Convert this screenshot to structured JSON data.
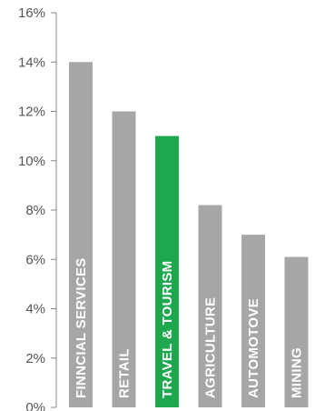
{
  "chart_data": {
    "type": "bar",
    "orientation": "vertical",
    "title": "",
    "xlabel": "",
    "ylabel": "",
    "categories": [
      "FINNCIAL SERVICES",
      "RETAIL",
      "TRAVEL & TOURISM",
      "AGRICULTURE",
      "AUTOMOTOVE",
      "MINING"
    ],
    "values": [
      14,
      12,
      11,
      8.2,
      7,
      6.1
    ],
    "ylim": [
      0,
      16
    ],
    "y_ticks": [
      0,
      2,
      4,
      6,
      8,
      10,
      12,
      14,
      16
    ],
    "y_tick_labels": [
      "0%",
      "2%",
      "4%",
      "6%",
      "8%",
      "10%",
      "12%",
      "14%",
      "16%"
    ],
    "grid": false,
    "legend": "none",
    "bar_labels_inside_vertical": true,
    "colors": {
      "default_bar": "#a6a6a6",
      "highlight_bar": "#1da850",
      "axis": "#888888",
      "tick_text": "#555555",
      "bar_text": "#ffffff"
    },
    "highlight_category": "TRAVEL & TOURISM"
  }
}
